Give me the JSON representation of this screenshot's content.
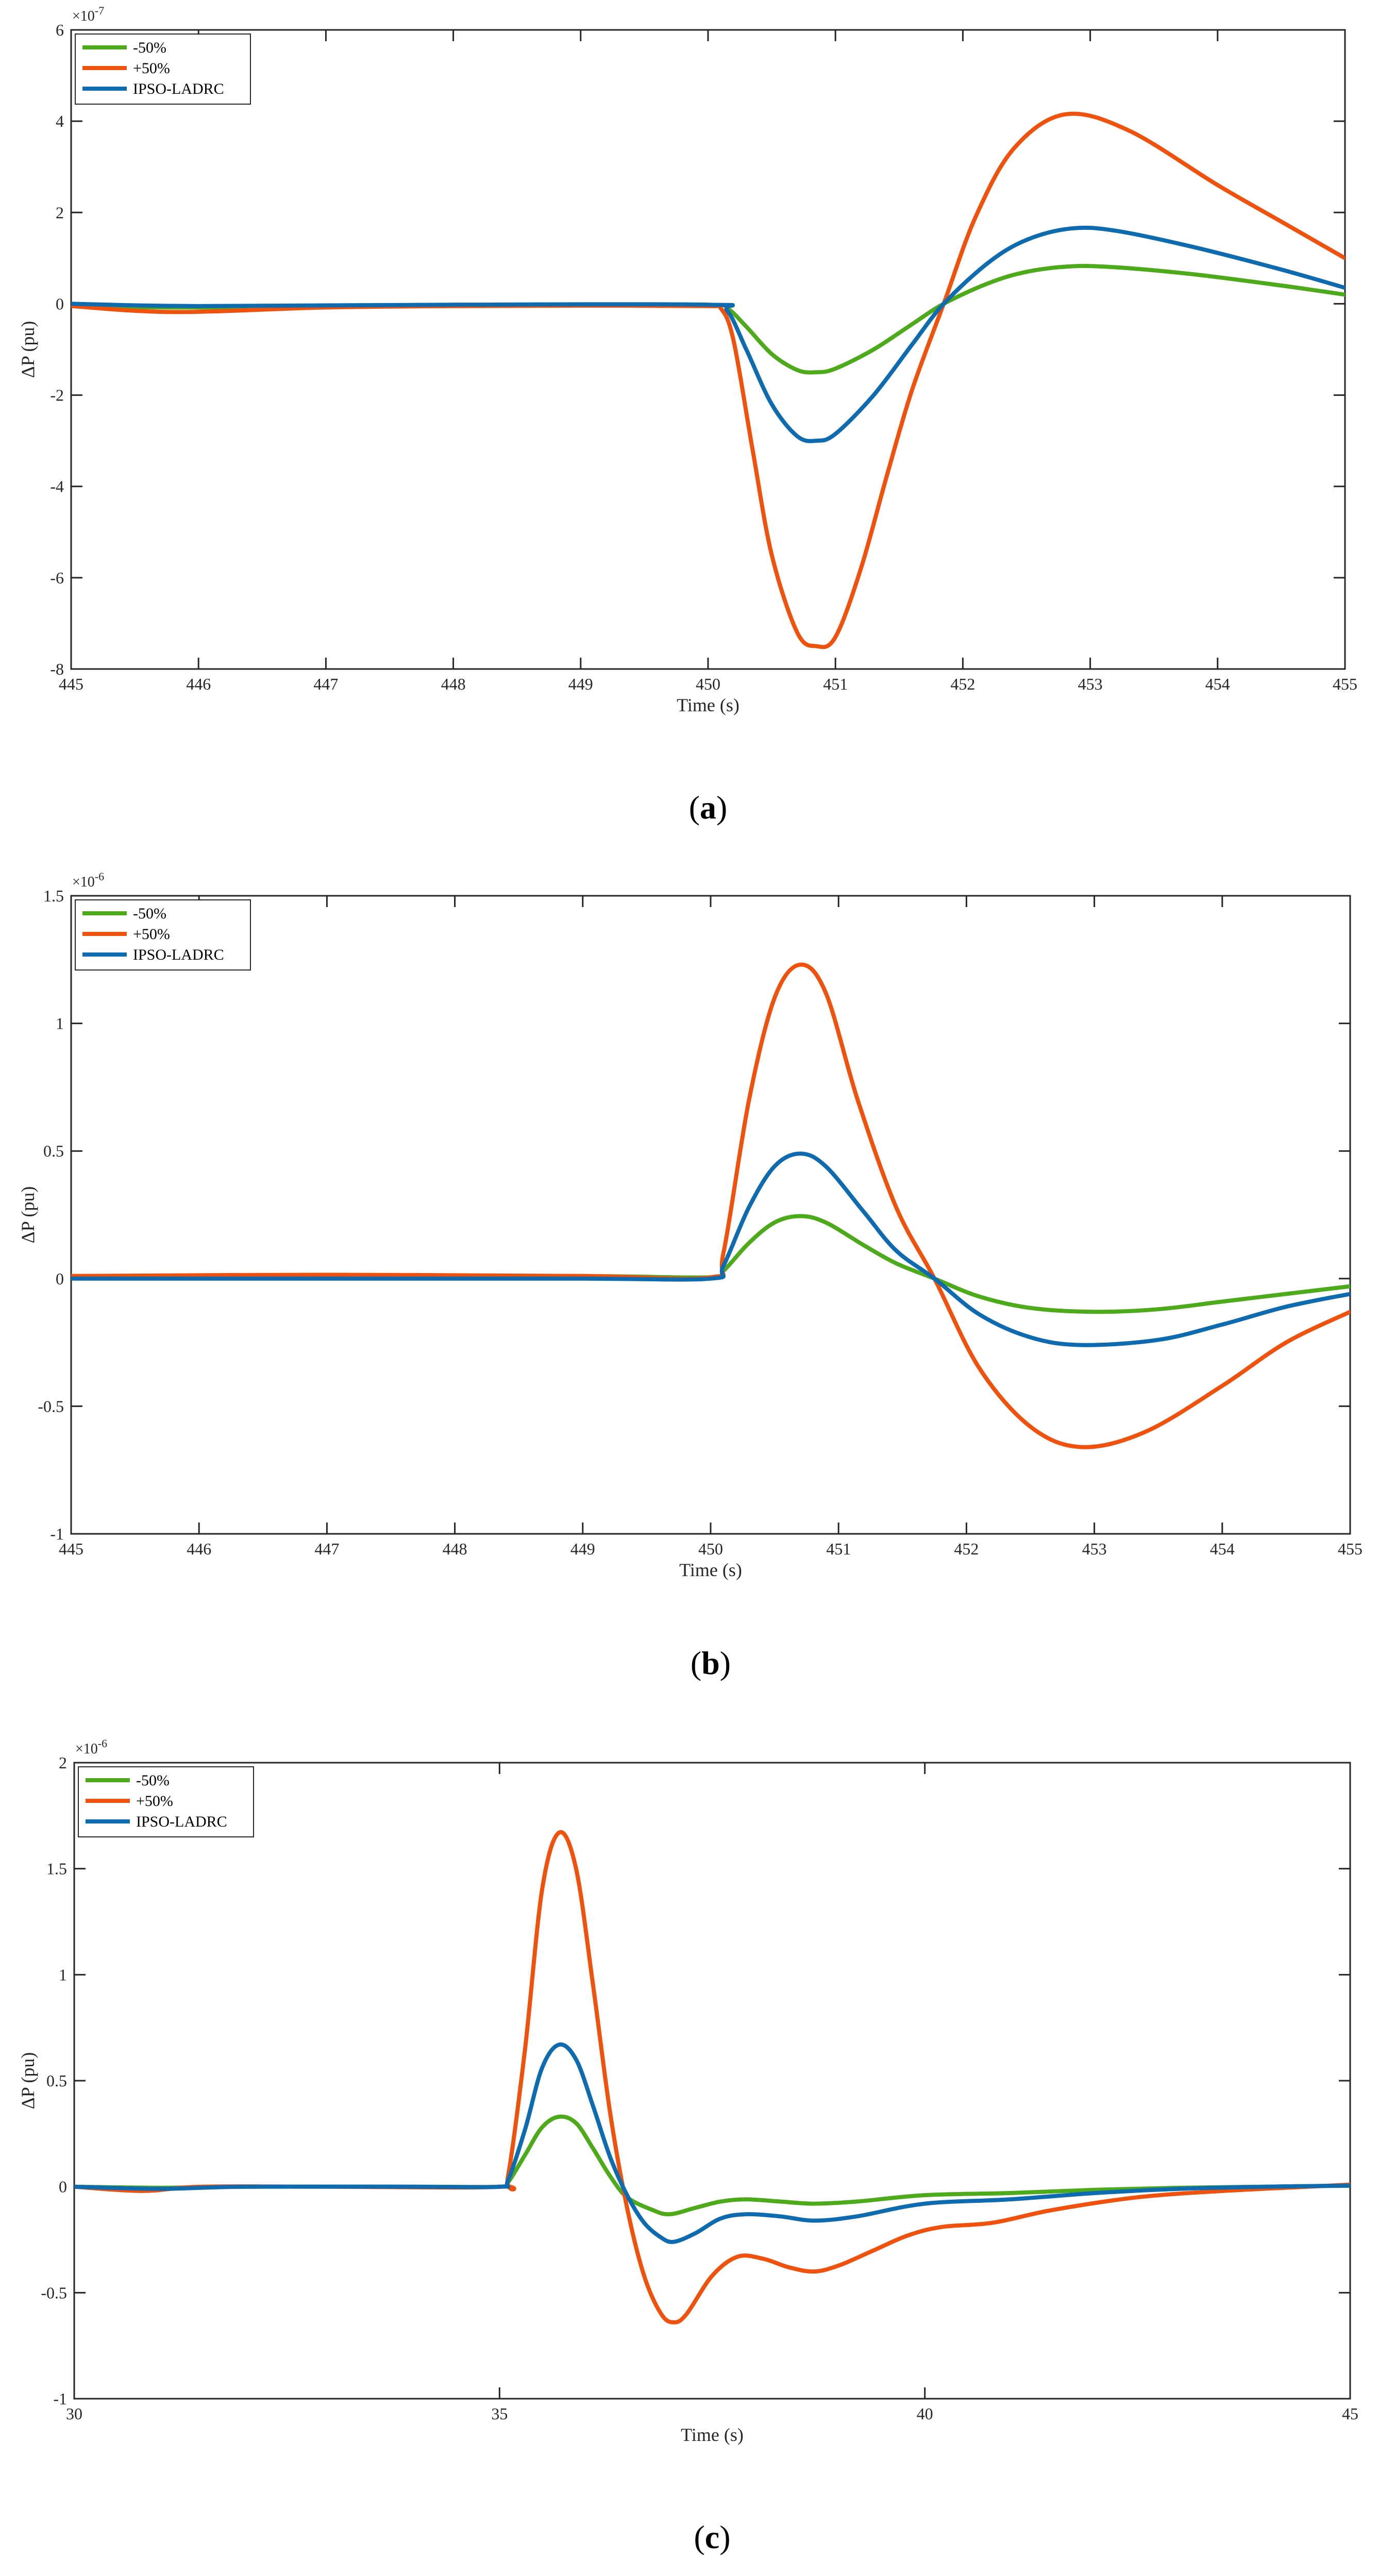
{
  "chart_data": [
    {
      "type": "line",
      "panel_label": "a",
      "xlabel": "Time (s)",
      "ylabel": "ΔP (pu)",
      "y_multiplier": "×10",
      "y_exponent": "-7",
      "xlim": [
        445,
        455
      ],
      "ylim": [
        -8,
        6
      ],
      "xticks": [
        445,
        446,
        447,
        448,
        449,
        450,
        451,
        452,
        453,
        454,
        455
      ],
      "xtick_labels": [
        "445",
        "446",
        "447",
        "448",
        "449",
        "450",
        "451",
        "452",
        "453",
        "454",
        "455"
      ],
      "yticks": [
        -8,
        -6,
        -4,
        -2,
        0,
        2,
        4,
        6
      ],
      "ytick_labels": [
        "-8",
        "-6",
        "-4",
        "-2",
        "0",
        "2",
        "4",
        "6"
      ],
      "legend_position": "top-left",
      "series": [
        {
          "name": "-50%",
          "color": "#4daa1a",
          "x": [
            445,
            446,
            448,
            450,
            450.15,
            450.3,
            450.5,
            450.7,
            450.85,
            451,
            451.3,
            451.6,
            451.85,
            452.2,
            452.5,
            452.85,
            453.2,
            453.8,
            454.5,
            455
          ],
          "y": [
            -0.05,
            -0.08,
            -0.04,
            -0.03,
            -0.1,
            -0.5,
            -1.1,
            -1.45,
            -1.5,
            -1.42,
            -1.0,
            -0.45,
            0.0,
            0.45,
            0.7,
            0.82,
            0.8,
            0.65,
            0.4,
            0.2
          ]
        },
        {
          "name": "+50%",
          "color": "#f0520e",
          "x": [
            445,
            445.8,
            447,
            448,
            449,
            450,
            450.1,
            450.2,
            450.35,
            450.5,
            450.7,
            450.85,
            451,
            451.2,
            451.4,
            451.6,
            451.85,
            452.1,
            452.4,
            452.8,
            453.3,
            454,
            454.5,
            455
          ],
          "y": [
            -0.05,
            -0.18,
            -0.08,
            -0.05,
            -0.04,
            -0.05,
            -0.1,
            -0.8,
            -3.2,
            -5.5,
            -7.2,
            -7.5,
            -7.3,
            -5.8,
            -3.8,
            -1.9,
            0.0,
            1.9,
            3.4,
            4.15,
            3.8,
            2.6,
            1.8,
            1.0
          ]
        },
        {
          "name": "IPSO-LADRC",
          "color": "#0f6bb0",
          "x": [
            445,
            446,
            448,
            450,
            450.15,
            450.3,
            450.5,
            450.7,
            450.85,
            451,
            451.3,
            451.6,
            451.85,
            452.2,
            452.5,
            452.85,
            453.2,
            453.8,
            454.5,
            455
          ],
          "y": [
            0.0,
            -0.05,
            -0.02,
            -0.02,
            -0.15,
            -1.0,
            -2.2,
            -2.9,
            -3.0,
            -2.85,
            -2.0,
            -0.9,
            0.0,
            0.9,
            1.4,
            1.65,
            1.6,
            1.25,
            0.75,
            0.35
          ]
        }
      ]
    },
    {
      "type": "line",
      "panel_label": "b",
      "xlabel": "Time (s)",
      "ylabel": "ΔP (pu)",
      "y_multiplier": "×10",
      "y_exponent": "-6",
      "xlim": [
        445,
        455
      ],
      "ylim": [
        -1,
        1.5
      ],
      "xticks": [
        445,
        446,
        447,
        448,
        449,
        450,
        451,
        452,
        453,
        454,
        455
      ],
      "xtick_labels": [
        "445",
        "446",
        "447",
        "448",
        "449",
        "450",
        "451",
        "452",
        "453",
        "454",
        "455"
      ],
      "yticks": [
        -1,
        -0.5,
        0,
        0.5,
        1,
        1.5
      ],
      "ytick_labels": [
        "-1",
        "-0.5",
        "0",
        "0.5",
        "1",
        "1.5"
      ],
      "legend_position": "top-left",
      "series": [
        {
          "name": "-50%",
          "color": "#4daa1a",
          "x": [
            445,
            447,
            449,
            450,
            450.1,
            450.3,
            450.5,
            450.7,
            450.9,
            451.2,
            451.45,
            451.75,
            452.1,
            452.5,
            453,
            453.5,
            454,
            454.5,
            455
          ],
          "y": [
            0.01,
            0.01,
            0.01,
            0.005,
            0.03,
            0.14,
            0.22,
            0.245,
            0.22,
            0.13,
            0.06,
            0.0,
            -0.07,
            -0.115,
            -0.13,
            -0.12,
            -0.09,
            -0.06,
            -0.03
          ]
        },
        {
          "name": "+50%",
          "color": "#f0520e",
          "x": [
            445,
            447,
            449,
            450,
            450.1,
            450.3,
            450.5,
            450.7,
            450.9,
            451.15,
            451.45,
            451.75,
            452.1,
            452.5,
            452.9,
            453.4,
            454,
            454.5,
            455
          ],
          "y": [
            0.01,
            0.015,
            0.01,
            0.005,
            0.1,
            0.7,
            1.1,
            1.23,
            1.12,
            0.7,
            0.28,
            0.0,
            -0.35,
            -0.58,
            -0.66,
            -0.6,
            -0.42,
            -0.25,
            -0.13
          ]
        },
        {
          "name": "IPSO-LADRC",
          "color": "#0f6bb0",
          "x": [
            445,
            447,
            449,
            450,
            450.1,
            450.3,
            450.5,
            450.7,
            450.9,
            451.2,
            451.45,
            451.75,
            452.1,
            452.5,
            452.9,
            453.5,
            454,
            454.5,
            455
          ],
          "y": [
            0.0,
            0.0,
            0.0,
            0.0,
            0.05,
            0.28,
            0.44,
            0.49,
            0.44,
            0.26,
            0.11,
            0.0,
            -0.14,
            -0.23,
            -0.26,
            -0.24,
            -0.18,
            -0.11,
            -0.06
          ]
        }
      ]
    },
    {
      "type": "line",
      "panel_label": "c",
      "xlabel": "Time (s)",
      "ylabel": "ΔP (pu)",
      "y_multiplier": "×10",
      "y_exponent": "-6",
      "xlim": [
        30,
        45
      ],
      "ylim": [
        -1,
        2
      ],
      "xticks": [
        30,
        35,
        40,
        45
      ],
      "xtick_labels": [
        "30",
        "35",
        "40",
        "45"
      ],
      "yticks": [
        -1,
        -0.5,
        0,
        0.5,
        1,
        1.5,
        2
      ],
      "ytick_labels": [
        "-1",
        "-0.5",
        "0",
        "0.5",
        "1",
        "1.5",
        "2"
      ],
      "legend_position": "top-left",
      "series": [
        {
          "name": "-50%",
          "color": "#4daa1a",
          "x": [
            30,
            31,
            32,
            34,
            35,
            35.1,
            35.3,
            35.5,
            35.7,
            35.9,
            36.1,
            36.3,
            36.5,
            36.8,
            37,
            37.3,
            37.6,
            37.9,
            38.3,
            38.7,
            39.2,
            40,
            41,
            42,
            43,
            44,
            45
          ],
          "y": [
            0.0,
            -0.005,
            0.0,
            0.0,
            0.0,
            0.02,
            0.15,
            0.28,
            0.33,
            0.3,
            0.18,
            0.05,
            -0.05,
            -0.11,
            -0.13,
            -0.1,
            -0.07,
            -0.06,
            -0.07,
            -0.08,
            -0.07,
            -0.04,
            -0.03,
            -0.015,
            -0.005,
            0.0,
            0.005
          ]
        },
        {
          "name": "+50%",
          "color": "#f0520e",
          "x": [
            30,
            30.8,
            31.5,
            33,
            35,
            35.1,
            35.3,
            35.5,
            35.7,
            35.9,
            36.1,
            36.3,
            36.5,
            36.7,
            36.9,
            37.05,
            37.2,
            37.5,
            37.8,
            38.1,
            38.4,
            38.7,
            39,
            39.4,
            39.8,
            40.2,
            40.8,
            41.5,
            42.5,
            43.5,
            44.5,
            45
          ],
          "y": [
            0.0,
            -0.02,
            0.0,
            0.0,
            0.0,
            0.05,
            0.65,
            1.4,
            1.67,
            1.5,
            0.95,
            0.35,
            -0.1,
            -0.42,
            -0.6,
            -0.64,
            -0.6,
            -0.42,
            -0.33,
            -0.34,
            -0.38,
            -0.4,
            -0.37,
            -0.3,
            -0.23,
            -0.19,
            -0.17,
            -0.11,
            -0.05,
            -0.02,
            0.0,
            0.01
          ]
        },
        {
          "name": "IPSO-LADRC",
          "color": "#0f6bb0",
          "x": [
            30,
            31,
            32,
            34,
            35,
            35.1,
            35.3,
            35.5,
            35.7,
            35.9,
            36.1,
            36.3,
            36.5,
            36.7,
            36.9,
            37.05,
            37.3,
            37.6,
            37.9,
            38.3,
            38.7,
            39.2,
            40,
            41,
            42,
            43,
            44,
            45
          ],
          "y": [
            0.0,
            -0.01,
            0.0,
            0.0,
            0.0,
            0.03,
            0.27,
            0.56,
            0.67,
            0.6,
            0.38,
            0.14,
            -0.04,
            -0.17,
            -0.24,
            -0.26,
            -0.22,
            -0.15,
            -0.13,
            -0.14,
            -0.16,
            -0.14,
            -0.08,
            -0.06,
            -0.03,
            -0.01,
            0.0,
            0.005
          ]
        }
      ]
    }
  ]
}
